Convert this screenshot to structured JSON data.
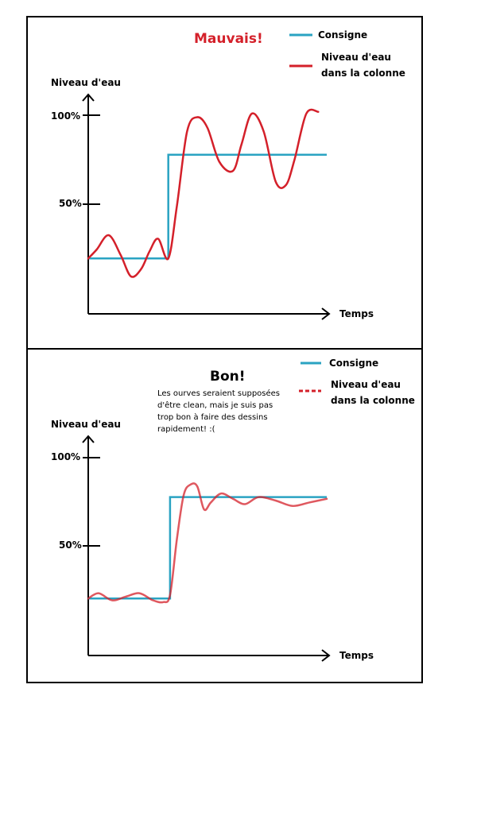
{
  "colors": {
    "setpoint": "#2aa3c2",
    "level": "#d4202a",
    "level_good": "#d4202a",
    "axis": "#000000"
  },
  "chart_data": [
    {
      "type": "line",
      "title": "Mauvais!",
      "xlabel": "Temps",
      "ylabel": "Niveau d'eau",
      "yticks": [
        "100%",
        "50%"
      ],
      "ylim": [
        0,
        120
      ],
      "xlim": [
        0,
        140
      ],
      "legend": [
        "Consigne",
        "Niveau d'eau",
        "dans la colonne"
      ],
      "series": [
        {
          "name": "Consigne",
          "x": [
            0,
            47,
            47,
            140
          ],
          "y": [
            31,
            31,
            89,
            89
          ]
        },
        {
          "name": "Niveau d'eau dans la colonne",
          "x": [
            0,
            5,
            12,
            19,
            25,
            31,
            36,
            41,
            47,
            52,
            58,
            64,
            70,
            77,
            85,
            90,
            96,
            103,
            110,
            116,
            121,
            128,
            135
          ],
          "y": [
            31,
            36,
            44,
            33,
            21,
            25,
            35,
            42,
            31,
            60,
            102,
            110,
            104,
            85,
            80,
            95,
            112,
            102,
            74,
            72,
            86,
            112,
            113
          ]
        }
      ]
    },
    {
      "type": "line",
      "title": "Bon!",
      "xlabel": "Temps",
      "ylabel": "Niveau d'eau",
      "yticks": [
        "100%",
        "50%"
      ],
      "ylim": [
        0,
        120
      ],
      "xlim": [
        0,
        140
      ],
      "legend": [
        "Consigne",
        "Niveau d'eau",
        "dans la colonne"
      ],
      "note": [
        "Les ourves seraient supposées",
        "d'être clean, mais je suis pas",
        "trop bon à faire des dessins",
        "rapidement! :("
      ],
      "series": [
        {
          "name": "Consigne",
          "x": [
            0,
            48,
            48,
            140
          ],
          "y": [
            32,
            32,
            89,
            89
          ]
        },
        {
          "name": "Niveau d'eau dans la colonne",
          "x": [
            0,
            6,
            14,
            22,
            30,
            38,
            44,
            48,
            52,
            56,
            60,
            64,
            68,
            72,
            78,
            85,
            92,
            100,
            110,
            120,
            130,
            140
          ],
          "y": [
            32,
            35,
            31,
            33,
            35,
            31,
            30,
            34,
            65,
            90,
            96,
            95,
            82,
            86,
            91,
            88,
            85,
            89,
            87,
            84,
            86,
            88
          ]
        }
      ]
    }
  ]
}
